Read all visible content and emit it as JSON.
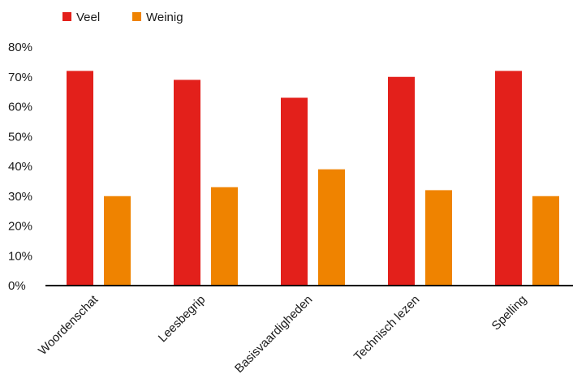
{
  "chart_data": {
    "type": "bar",
    "categories": [
      "Woordenschat",
      "Leesbegrip",
      "Basisvaardigheden",
      "Technisch lezen",
      "Spelling"
    ],
    "series": [
      {
        "name": "Veel",
        "color": "#e3201b",
        "values": [
          72,
          69,
          63,
          70,
          72
        ]
      },
      {
        "name": "Weinig",
        "color": "#ef8300",
        "values": [
          30,
          33,
          39,
          32,
          30
        ]
      }
    ],
    "yticks": [
      "0%",
      "10%",
      "20%",
      "30%",
      "40%",
      "50%",
      "60%",
      "70%",
      "80%"
    ],
    "ylim": [
      0,
      80
    ],
    "unit": "%",
    "grid": false,
    "legend_position": "top-left"
  }
}
